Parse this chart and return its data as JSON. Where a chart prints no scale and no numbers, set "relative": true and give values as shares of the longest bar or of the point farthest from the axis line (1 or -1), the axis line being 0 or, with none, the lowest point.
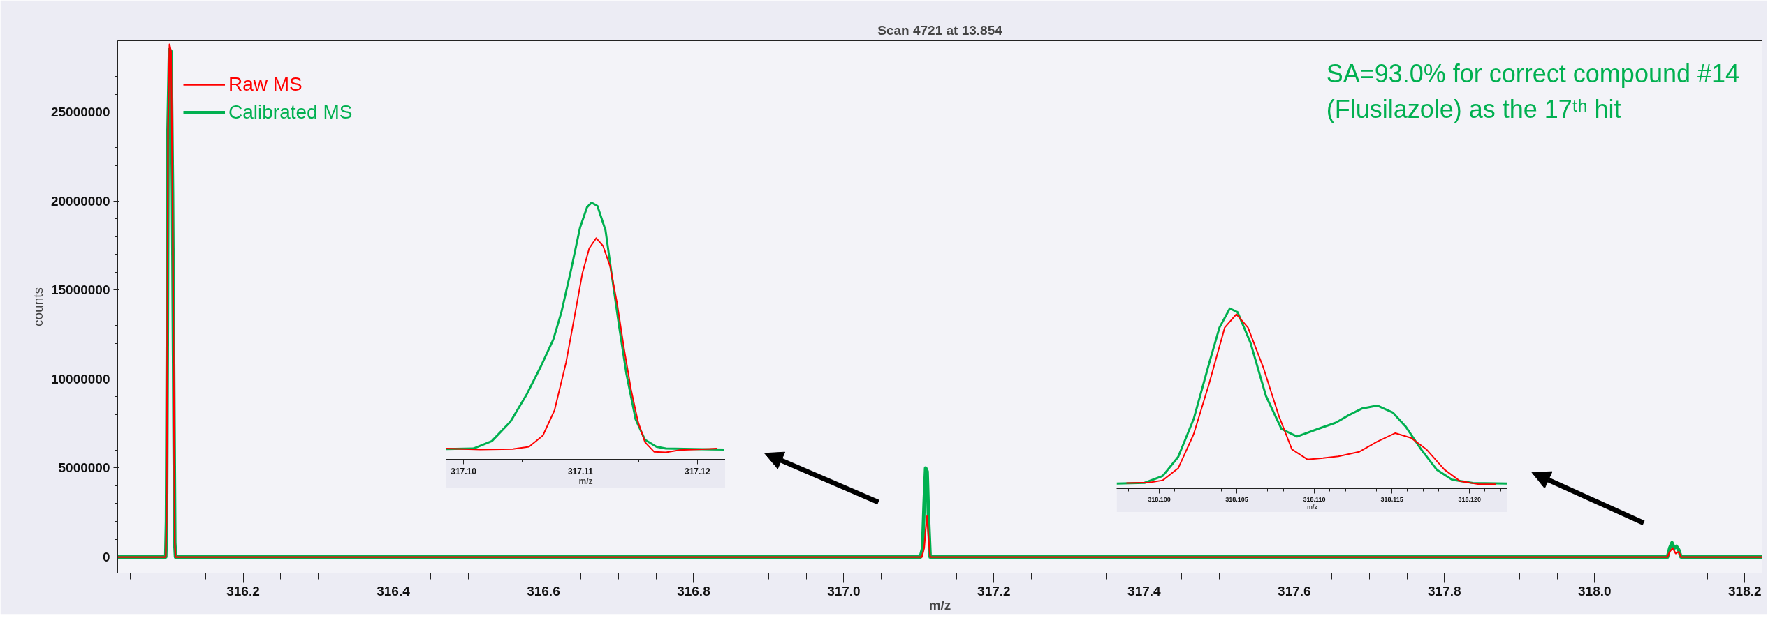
{
  "chart_data": [
    {
      "type": "line",
      "title": "Scan 4721 at 13.854",
      "xlabel": "m/z",
      "ylabel": "counts",
      "legend": "top left",
      "annotations": [
        "SA=93.0% for correct compound #14\n(Flusilazole) as the 17ᵗʰ hit"
      ],
      "xlim": [
        316.033,
        318.223
      ],
      "ylim": [
        -900000,
        29000000
      ],
      "xticks": [
        {
          "value": 316.05,
          "label": null
        },
        {
          "value": 316.1,
          "label": null
        },
        {
          "value": 316.15,
          "label": null
        },
        316.2,
        {
          "value": 316.25,
          "label": null
        },
        {
          "value": 316.3,
          "label": null
        },
        {
          "value": 316.35,
          "label": null
        },
        316.4,
        {
          "value": 316.45,
          "label": null
        },
        {
          "value": 316.5,
          "label": null
        },
        {
          "value": 316.55,
          "label": null
        },
        316.6,
        {
          "value": 316.65,
          "label": null
        },
        {
          "value": 316.7,
          "label": null
        },
        {
          "value": 316.75,
          "label": null
        },
        316.8,
        {
          "value": 316.85,
          "label": null
        },
        {
          "value": 316.9,
          "label": null
        },
        {
          "value": 316.95,
          "label": null
        },
        {
          "value": 317.0,
          "label": "317.0"
        },
        {
          "value": 317.05,
          "label": null
        },
        {
          "value": 317.1,
          "label": null
        },
        {
          "value": 317.15,
          "label": null
        },
        317.2,
        {
          "value": 317.25,
          "label": null
        },
        {
          "value": 317.3,
          "label": null
        },
        {
          "value": 317.35,
          "label": null
        },
        317.4,
        {
          "value": 317.45,
          "label": null
        },
        {
          "value": 317.5,
          "label": null
        },
        {
          "value": 317.55,
          "label": null
        },
        317.6,
        {
          "value": 317.65,
          "label": null
        },
        {
          "value": 317.7,
          "label": null
        },
        {
          "value": 317.75,
          "label": null
        },
        317.8,
        {
          "value": 317.85,
          "label": null
        },
        {
          "value": 317.9,
          "label": null
        },
        {
          "value": 317.95,
          "label": null
        },
        {
          "value": 318.0,
          "label": "318.0"
        },
        {
          "value": 318.05,
          "label": null
        },
        {
          "value": 318.1,
          "label": null
        },
        {
          "value": 318.15,
          "label": null
        },
        318.2
      ],
      "yticks": [
        0,
        {
          "value": 1000000,
          "label": null
        },
        {
          "value": 2000000,
          "label": null
        },
        {
          "value": 3000000,
          "label": null
        },
        {
          "value": 4000000,
          "label": null
        },
        5000000,
        {
          "value": 6000000,
          "label": null
        },
        {
          "value": 7000000,
          "label": null
        },
        {
          "value": 8000000,
          "label": null
        },
        {
          "value": 9000000,
          "label": null
        },
        10000000,
        {
          "value": 11000000,
          "label": null
        },
        {
          "value": 12000000,
          "label": null
        },
        {
          "value": 13000000,
          "label": null
        },
        {
          "value": 14000000,
          "label": null
        },
        15000000,
        {
          "value": 16000000,
          "label": null
        },
        {
          "value": 17000000,
          "label": null
        },
        {
          "value": 18000000,
          "label": null
        },
        {
          "value": 19000000,
          "label": null
        },
        20000000,
        {
          "value": 21000000,
          "label": null
        },
        {
          "value": 22000000,
          "label": null
        },
        {
          "value": 23000000,
          "label": null
        },
        {
          "value": 24000000,
          "label": null
        },
        25000000,
        {
          "value": 26000000,
          "label": null
        },
        {
          "value": 27000000,
          "label": null
        },
        {
          "value": 28000000,
          "label": null
        }
      ],
      "series": [
        {
          "name": "Raw MS",
          "color": "#ff0000",
          "x": [
            316.033,
            316.097,
            316.098,
            316.099,
            316.1,
            316.102,
            316.104,
            316.106,
            316.108,
            316.109,
            316.11,
            317.104,
            317.107,
            317.109,
            317.111,
            317.113,
            317.115,
            318.097,
            318.1,
            318.104,
            318.108,
            318.112,
            318.115,
            318.223
          ],
          "values": [
            0,
            0,
            2000000,
            11400000,
            24000000,
            28800000,
            28400000,
            20500000,
            7300000,
            800000,
            0,
            0,
            500000,
            1500000,
            2300000,
            1000000,
            0,
            0,
            300000,
            500000,
            200000,
            300000,
            0,
            0
          ]
        },
        {
          "name": "Calibrated MS",
          "color": "#00b050",
          "x": [
            316.033,
            316.097,
            316.098,
            316.099,
            316.1,
            316.102,
            316.104,
            316.106,
            316.108,
            316.109,
            316.11,
            317.102,
            317.105,
            317.107,
            317.109,
            317.111,
            317.113,
            317.115,
            318.097,
            318.1,
            318.103,
            318.106,
            318.109,
            318.112,
            318.115,
            318.223
          ],
          "values": [
            0,
            0,
            2000000,
            11400000,
            24000000,
            28500000,
            28400000,
            20500000,
            7300000,
            800000,
            0,
            0,
            500000,
            3000000,
            5000000,
            4800000,
            2000000,
            0,
            0,
            500000,
            800000,
            500000,
            600000,
            400000,
            0,
            0
          ]
        }
      ]
    },
    {
      "type": "line",
      "relative": true,
      "xlabel": "m/z",
      "xlim": [
        317.0985,
        317.1224
      ],
      "xticks": [
        {
          "value": 317.1,
          "label": "317.10"
        },
        {
          "value": 317.105,
          "label": null
        },
        {
          "value": 317.11,
          "label": "317.11"
        },
        {
          "value": 317.115,
          "label": null
        },
        {
          "value": 317.12,
          "label": "317.12"
        }
      ],
      "series": [
        {
          "color": "#ff0000",
          "x": [
            317.09853,
            317.10143,
            317.10421,
            317.1056,
            317.10679,
            317.10778,
            317.10877,
            317.10956,
            317.11016,
            317.11075,
            317.11135,
            317.11194,
            317.11254,
            317.11313,
            317.11373,
            317.11433,
            317.11492,
            317.11552,
            317.11631,
            317.1173,
            317.11849,
            317.12167
          ],
          "values": [
            0.042,
            0.038,
            0.04,
            0.049,
            0.093,
            0.191,
            0.378,
            0.573,
            0.724,
            0.822,
            0.862,
            0.831,
            0.751,
            0.609,
            0.431,
            0.271,
            0.147,
            0.067,
            0.029,
            0.027,
            0.036,
            0.042
          ]
        },
        {
          "color": "#00b050",
          "x": [
            317.09853,
            317.10083,
            317.10242,
            317.10401,
            317.1054,
            317.10659,
            317.10768,
            317.10837,
            317.10917,
            317.10996,
            317.11056,
            317.11095,
            317.11145,
            317.11214,
            317.11274,
            317.11333,
            317.11393,
            317.11472,
            317.11552,
            317.11651,
            317.1173,
            317.1223
          ],
          "values": [
            0.04,
            0.042,
            0.071,
            0.147,
            0.253,
            0.36,
            0.467,
            0.573,
            0.733,
            0.902,
            0.982,
            1.0,
            0.987,
            0.893,
            0.698,
            0.511,
            0.333,
            0.156,
            0.076,
            0.049,
            0.042,
            0.038
          ]
        }
      ]
    },
    {
      "type": "line",
      "relative": true,
      "xlabel": "m/z",
      "xlim": [
        318.09725,
        318.12247
      ],
      "xticks": [
        {
          "value": 318.098,
          "label": null
        },
        {
          "value": 318.099,
          "label": null
        },
        {
          "value": 318.1,
          "label": "318.100"
        },
        {
          "value": 318.101,
          "label": null
        },
        {
          "value": 318.102,
          "label": null
        },
        {
          "value": 318.103,
          "label": null
        },
        {
          "value": 318.104,
          "label": null
        },
        {
          "value": 318.105,
          "label": "318.105"
        },
        {
          "value": 318.106,
          "label": null
        },
        {
          "value": 318.107,
          "label": null
        },
        {
          "value": 318.108,
          "label": null
        },
        {
          "value": 318.109,
          "label": null
        },
        {
          "value": 318.11,
          "label": "318.110"
        },
        {
          "value": 318.111,
          "label": null
        },
        {
          "value": 318.112,
          "label": null
        },
        {
          "value": 318.113,
          "label": null
        },
        {
          "value": 318.114,
          "label": null
        },
        {
          "value": 318.115,
          "label": "318.115"
        },
        {
          "value": 318.116,
          "label": null
        },
        {
          "value": 318.117,
          "label": null
        },
        {
          "value": 318.118,
          "label": null
        },
        {
          "value": 318.119,
          "label": null
        },
        {
          "value": 318.12,
          "label": "318.120"
        },
        {
          "value": 318.121,
          "label": null
        },
        {
          "value": 318.122,
          "label": null
        }
      ],
      "series": [
        {
          "color": "#ff0000",
          "x": [
            318.09788,
            318.09938,
            318.10022,
            318.10122,
            318.10222,
            318.10322,
            318.10422,
            318.10497,
            318.10572,
            318.10672,
            318.10772,
            318.10855,
            318.10955,
            318.11055,
            318.11155,
            318.11288,
            318.11405,
            318.11522,
            318.11622,
            318.11722,
            318.11838,
            318.11938,
            318.12055,
            318.12172
          ],
          "values": [
            0.031,
            0.034,
            0.046,
            0.113,
            0.303,
            0.585,
            0.894,
            0.968,
            0.894,
            0.669,
            0.401,
            0.218,
            0.162,
            0.169,
            0.179,
            0.204,
            0.261,
            0.308,
            0.282,
            0.218,
            0.106,
            0.042,
            0.025,
            0.024
          ]
        },
        {
          "color": "#00b050",
          "x": [
            318.09725,
            318.09905,
            318.10022,
            318.10122,
            318.10222,
            318.10322,
            318.10388,
            318.10455,
            318.10505,
            318.10588,
            318.10688,
            318.10788,
            318.10888,
            318.11022,
            318.11138,
            318.11222,
            318.11305,
            318.11405,
            318.11505,
            318.11588,
            318.11688,
            318.11788,
            318.11888,
            318.12022,
            318.12247
          ],
          "values": [
            0.028,
            0.032,
            0.07,
            0.176,
            0.387,
            0.697,
            0.894,
            1.0,
            0.979,
            0.81,
            0.514,
            0.331,
            0.289,
            0.331,
            0.366,
            0.408,
            0.444,
            0.461,
            0.423,
            0.345,
            0.218,
            0.106,
            0.049,
            0.031,
            0.028
          ]
        }
      ]
    }
  ]
}
